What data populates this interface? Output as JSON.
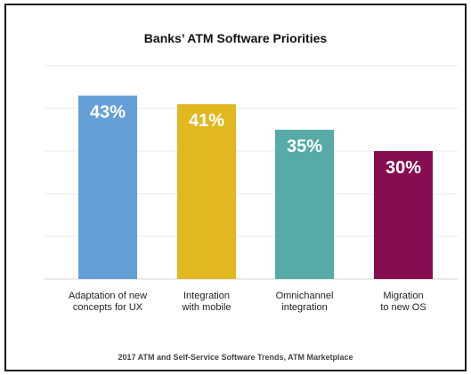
{
  "chart_data": {
    "type": "bar",
    "title": "Banks’ ATM Software Priorities",
    "categories": [
      [
        "Adaptation of new",
        "concepts for UX"
      ],
      [
        "Integration",
        "with mobile"
      ],
      [
        "Omnichannel",
        "integration"
      ],
      [
        "Migration",
        "to new OS"
      ]
    ],
    "values": [
      43,
      41,
      35,
      30
    ],
    "value_labels": [
      "43%",
      "41%",
      "35%",
      "30%"
    ],
    "colors": [
      "#649fd8",
      "#e1b820",
      "#56aba6",
      "#870d51"
    ],
    "ylim": [
      0,
      50
    ],
    "grid": true,
    "xlabel": "",
    "ylabel": ""
  },
  "source": "2017 ATM and Self-Service Software Trends, ATM Marketplace"
}
